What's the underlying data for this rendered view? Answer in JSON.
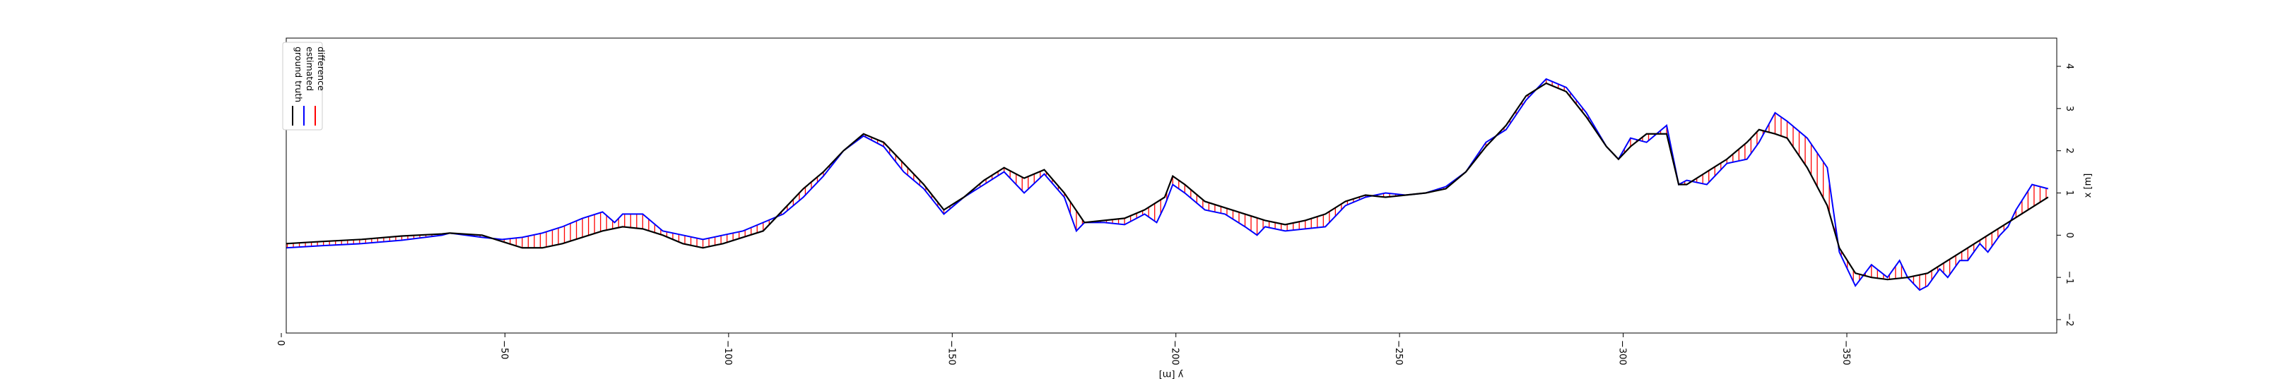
{
  "chart_data": {
    "type": "line",
    "xlabel": "y [m]",
    "ylabel": "x [m]",
    "xlim": [
      0,
      -396
    ],
    "ylim": [
      -2.3,
      4.7
    ],
    "x_ticks": [
      0,
      -50,
      -100,
      -150,
      -200,
      -250,
      -300,
      -350
    ],
    "x_tick_labels": [
      "0",
      "−50",
      "−100",
      "−150",
      "−200",
      "−250",
      "−300",
      "−350"
    ],
    "y_ticks": [
      -2,
      -1,
      0,
      1,
      2,
      3,
      4
    ],
    "y_tick_labels": [
      "−2",
      "−1",
      "0",
      "1",
      "2",
      "3",
      "4"
    ],
    "grid": false,
    "legend_position": "top-left",
    "legend": [
      "ground truth",
      "estimated",
      "difference"
    ],
    "colors": {
      "ground_truth": "#000000",
      "estimated": "#0000ff",
      "difference": "#ff0000"
    },
    "series": [
      {
        "name": "ground truth",
        "points": [
          [
            0,
            -0.2
          ],
          [
            10,
            -0.15
          ],
          [
            20,
            -0.1
          ],
          [
            30,
            -0.02
          ],
          [
            40,
            0.03
          ],
          [
            42,
            0.05
          ],
          [
            50,
            0.0
          ],
          [
            55,
            -0.15
          ],
          [
            60,
            -0.3
          ],
          [
            65,
            -0.3
          ],
          [
            70,
            -0.2
          ],
          [
            75,
            -0.05
          ],
          [
            80,
            0.1
          ],
          [
            85,
            0.2
          ],
          [
            90,
            0.15
          ],
          [
            95,
            0.0
          ],
          [
            100,
            -0.2
          ],
          [
            105,
            -0.3
          ],
          [
            110,
            -0.2
          ],
          [
            115,
            -0.05
          ],
          [
            120,
            0.1
          ],
          [
            125,
            0.6
          ],
          [
            130,
            1.1
          ],
          [
            135,
            1.5
          ],
          [
            140,
            2.0
          ],
          [
            145,
            2.4
          ],
          [
            150,
            2.2
          ],
          [
            155,
            1.7
          ],
          [
            160,
            1.2
          ],
          [
            165,
            0.6
          ],
          [
            170,
            0.9
          ],
          [
            175,
            1.3
          ],
          [
            180,
            1.6
          ],
          [
            185,
            1.35
          ],
          [
            190,
            1.55
          ],
          [
            195,
            1.0
          ],
          [
            200,
            0.3
          ],
          [
            205,
            0.35
          ],
          [
            210,
            0.4
          ],
          [
            215,
            0.6
          ],
          [
            220,
            0.9
          ],
          [
            222,
            1.4
          ],
          [
            225,
            1.2
          ],
          [
            230,
            0.8
          ],
          [
            235,
            0.65
          ],
          [
            240,
            0.5
          ],
          [
            245,
            0.35
          ],
          [
            250,
            0.25
          ],
          [
            255,
            0.35
          ],
          [
            260,
            0.5
          ],
          [
            265,
            0.8
          ],
          [
            270,
            0.95
          ],
          [
            275,
            0.9
          ],
          [
            280,
            0.95
          ],
          [
            285,
            1.0
          ],
          [
            290,
            1.1
          ],
          [
            295,
            1.5
          ],
          [
            300,
            2.1
          ],
          [
            305,
            2.6
          ],
          [
            310,
            3.3
          ],
          [
            315,
            3.6
          ],
          [
            320,
            3.4
          ],
          [
            325,
            2.8
          ],
          [
            330,
            2.1
          ],
          [
            333,
            1.8
          ],
          [
            336,
            2.1
          ],
          [
            340,
            2.4
          ],
          [
            345,
            2.4
          ],
          [
            348,
            1.2
          ],
          [
            350,
            1.2
          ],
          [
            355,
            1.5
          ],
          [
            360,
            1.8
          ],
          [
            365,
            2.2
          ],
          [
            368,
            2.5
          ],
          [
            372,
            2.4
          ],
          [
            375,
            2.3
          ],
          [
            380,
            1.6
          ],
          [
            385,
            0.7
          ],
          [
            388,
            -0.3
          ],
          [
            392,
            -0.9
          ],
          [
            396,
            -1.0
          ],
          [
            400,
            -1.05
          ],
          [
            405,
            -1.0
          ],
          [
            410,
            -0.9
          ],
          [
            415,
            -0.6
          ],
          [
            420,
            -0.3
          ],
          [
            425,
            0.0
          ],
          [
            430,
            0.3
          ],
          [
            435,
            0.6
          ],
          [
            440,
            0.9
          ]
        ]
      },
      {
        "name": "estimated",
        "points": [
          [
            0,
            -0.3
          ],
          [
            10,
            -0.25
          ],
          [
            20,
            -0.2
          ],
          [
            30,
            -0.12
          ],
          [
            40,
            0.0
          ],
          [
            42,
            0.05
          ],
          [
            50,
            -0.05
          ],
          [
            55,
            -0.1
          ],
          [
            60,
            -0.05
          ],
          [
            65,
            0.05
          ],
          [
            70,
            0.2
          ],
          [
            75,
            0.4
          ],
          [
            80,
            0.55
          ],
          [
            83,
            0.3
          ],
          [
            85,
            0.5
          ],
          [
            90,
            0.5
          ],
          [
            95,
            0.1
          ],
          [
            100,
            0.0
          ],
          [
            105,
            -0.1
          ],
          [
            110,
            0.0
          ],
          [
            115,
            0.1
          ],
          [
            120,
            0.3
          ],
          [
            125,
            0.5
          ],
          [
            130,
            0.9
          ],
          [
            135,
            1.4
          ],
          [
            140,
            2.0
          ],
          [
            145,
            2.35
          ],
          [
            150,
            2.1
          ],
          [
            155,
            1.5
          ],
          [
            160,
            1.1
          ],
          [
            165,
            0.5
          ],
          [
            170,
            0.9
          ],
          [
            175,
            1.2
          ],
          [
            180,
            1.5
          ],
          [
            185,
            1.0
          ],
          [
            190,
            1.45
          ],
          [
            195,
            0.9
          ],
          [
            198,
            0.1
          ],
          [
            200,
            0.3
          ],
          [
            205,
            0.3
          ],
          [
            210,
            0.25
          ],
          [
            215,
            0.5
          ],
          [
            218,
            0.3
          ],
          [
            220,
            0.7
          ],
          [
            222,
            1.2
          ],
          [
            225,
            1.0
          ],
          [
            230,
            0.6
          ],
          [
            235,
            0.5
          ],
          [
            240,
            0.2
          ],
          [
            243,
            0.0
          ],
          [
            245,
            0.2
          ],
          [
            250,
            0.1
          ],
          [
            255,
            0.15
          ],
          [
            260,
            0.2
          ],
          [
            262,
            0.4
          ],
          [
            265,
            0.7
          ],
          [
            270,
            0.9
          ],
          [
            275,
            1.0
          ],
          [
            280,
            0.95
          ],
          [
            285,
            1.0
          ],
          [
            290,
            1.15
          ],
          [
            295,
            1.5
          ],
          [
            300,
            2.2
          ],
          [
            305,
            2.5
          ],
          [
            310,
            3.2
          ],
          [
            315,
            3.7
          ],
          [
            320,
            3.5
          ],
          [
            325,
            2.9
          ],
          [
            330,
            2.1
          ],
          [
            333,
            1.8
          ],
          [
            336,
            2.3
          ],
          [
            340,
            2.2
          ],
          [
            345,
            2.6
          ],
          [
            348,
            1.2
          ],
          [
            350,
            1.3
          ],
          [
            355,
            1.2
          ],
          [
            360,
            1.7
          ],
          [
            365,
            1.8
          ],
          [
            368,
            2.2
          ],
          [
            372,
            2.9
          ],
          [
            375,
            2.7
          ],
          [
            380,
            2.3
          ],
          [
            385,
            1.6
          ],
          [
            388,
            -0.4
          ],
          [
            392,
            -1.2
          ],
          [
            396,
            -0.7
          ],
          [
            400,
            -1.0
          ],
          [
            403,
            -0.6
          ],
          [
            405,
            -1.0
          ],
          [
            408,
            -1.3
          ],
          [
            410,
            -1.2
          ],
          [
            413,
            -0.8
          ],
          [
            415,
            -1.0
          ],
          [
            418,
            -0.6
          ],
          [
            420,
            -0.6
          ],
          [
            423,
            -0.2
          ],
          [
            425,
            -0.4
          ],
          [
            428,
            0.0
          ],
          [
            430,
            0.2
          ],
          [
            432,
            0.6
          ],
          [
            434,
            0.9
          ],
          [
            436,
            1.2
          ],
          [
            440,
            1.1
          ]
        ]
      }
    ]
  }
}
